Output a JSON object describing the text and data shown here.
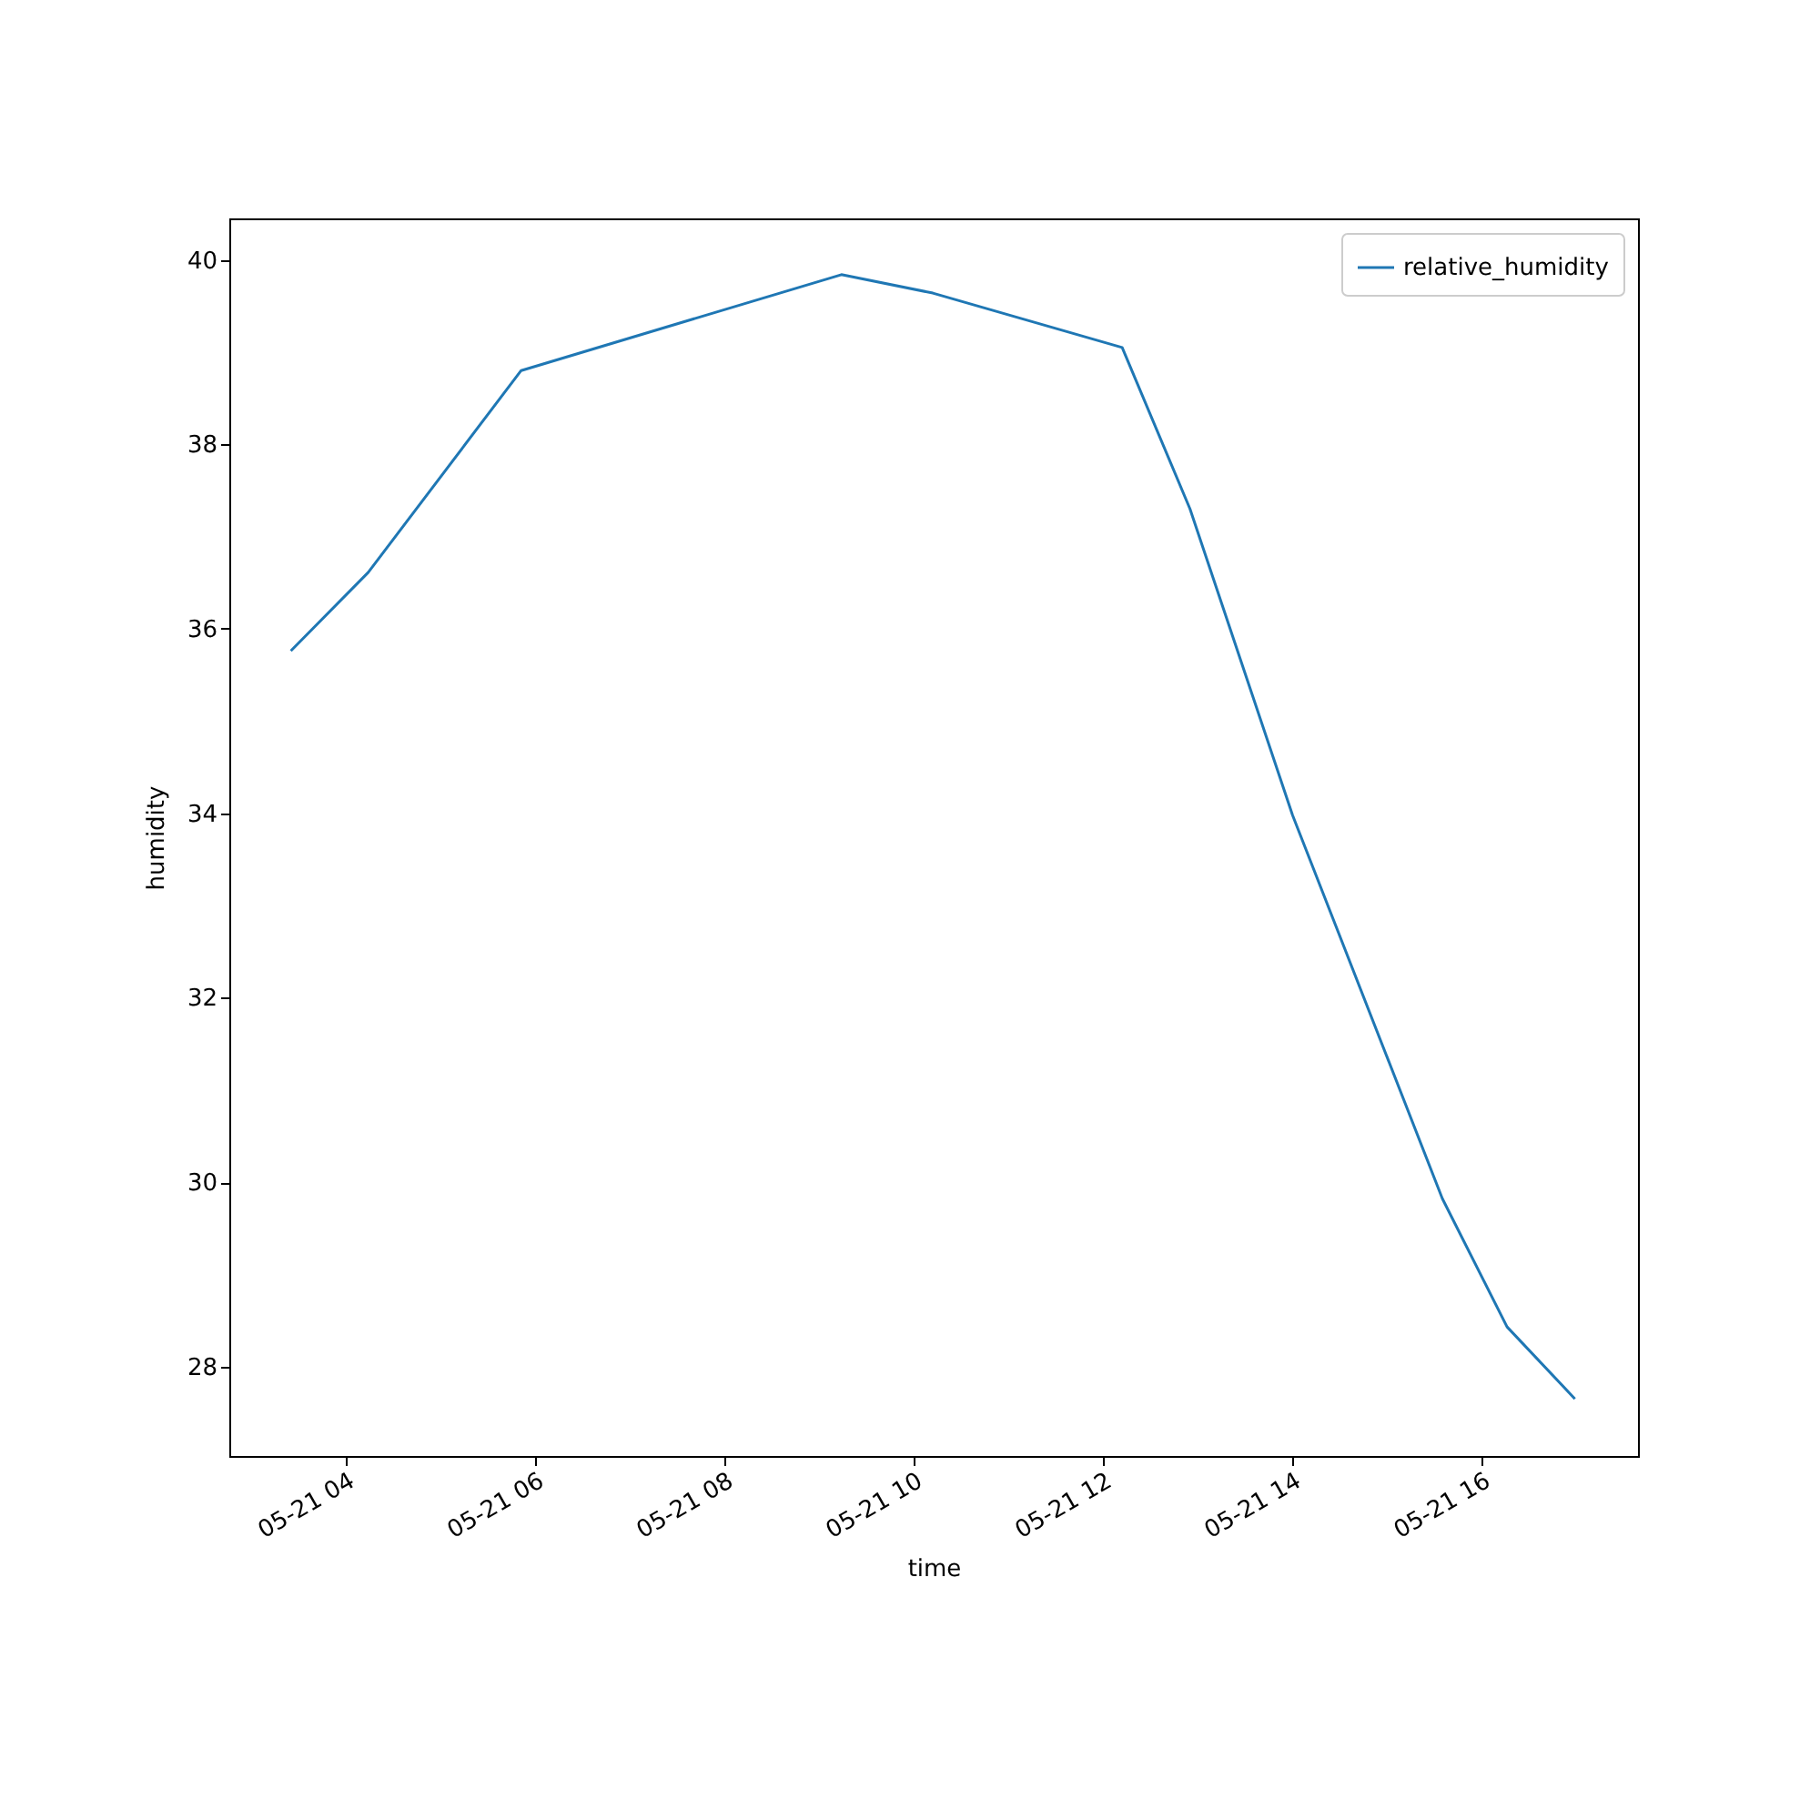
{
  "chart_data": {
    "type": "line",
    "xlabel": "time",
    "ylabel": "humidity",
    "x": [
      "--05-21T03:25",
      "--05-21T04:14",
      "--05-21T05:51",
      "--05-21T09:14",
      "--05-21T10:12",
      "--05-21T12:12",
      "--05-21T12:55",
      "--05-21T14:00",
      "--05-21T15:35",
      "--05-21T16:16",
      "--05-21T16:59"
    ],
    "series": [
      {
        "name": "relative_humidity",
        "color": "#1f77b4",
        "values": [
          35.76,
          36.61,
          38.8,
          39.84,
          39.64,
          39.05,
          37.3,
          33.98,
          29.82,
          28.43,
          27.65
        ]
      }
    ],
    "xlim": [
      "--05-21T02:46",
      "--05-21T17:39"
    ],
    "xticks": [
      {
        "value": "--05-21T04:00",
        "label": "05-21 04"
      },
      {
        "value": "--05-21T06:00",
        "label": "05-21 06"
      },
      {
        "value": "--05-21T08:00",
        "label": "05-21 08"
      },
      {
        "value": "--05-21T10:00",
        "label": "05-21 10"
      },
      {
        "value": "--05-21T12:00",
        "label": "05-21 12"
      },
      {
        "value": "--05-21T14:00",
        "label": "05-21 14"
      },
      {
        "value": "--05-21T16:00",
        "label": "05-21 16"
      }
    ],
    "ylim": [
      27.03,
      40.45
    ],
    "yticks": [
      28,
      30,
      32,
      34,
      36,
      38,
      40
    ],
    "legend": "top right",
    "grid": false,
    "marker": "none",
    "line_style": "solid"
  }
}
